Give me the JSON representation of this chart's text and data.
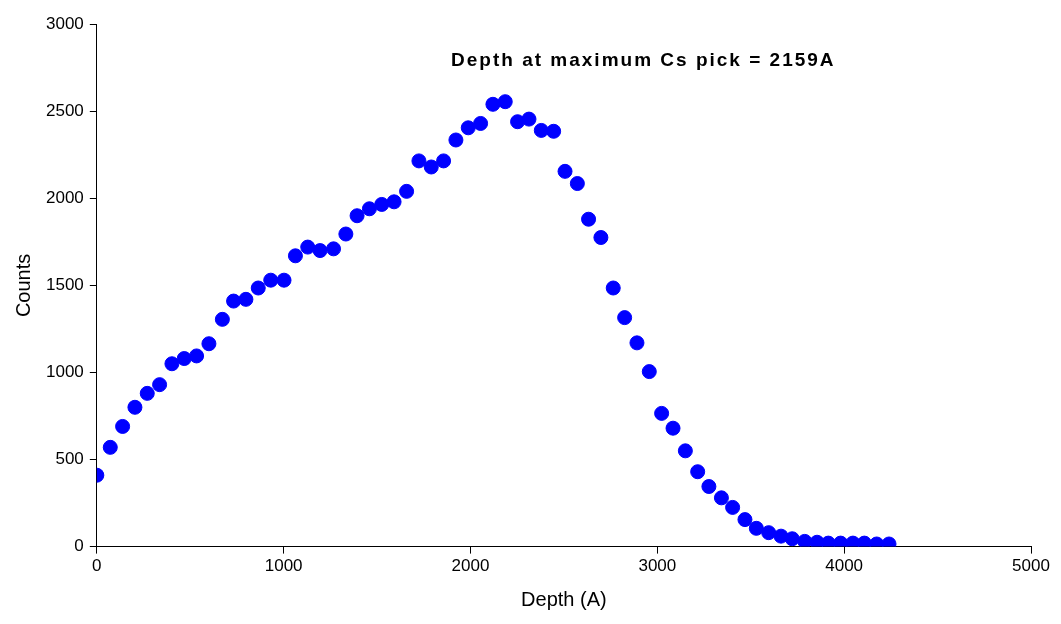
{
  "chart_data": {
    "type": "scatter",
    "xlabel": "Depth (A)",
    "ylabel": "Counts",
    "annotations": [
      "Depth at maximum Cs pick = 2159A"
    ],
    "marker": "circle",
    "grid": false,
    "legend": false,
    "xlim": [
      0,
      5000
    ],
    "xticks": [
      0,
      1000,
      2000,
      3000,
      4000,
      5000
    ],
    "ylim": [
      0,
      3000
    ],
    "yticks": [
      0,
      500,
      1000,
      1500,
      2000,
      2500,
      3000
    ],
    "series": [
      {
        "color": "#0000ff",
        "x": [
          0,
          72,
          138,
          204,
          270,
          336,
          402,
          468,
          534,
          600,
          672,
          732,
          798,
          864,
          931,
          1002,
          1063,
          1129,
          1195,
          1267,
          1333,
          1393,
          1459,
          1525,
          1591,
          1658,
          1724,
          1790,
          1856,
          1922,
          1988,
          2054,
          2120,
          2186,
          2252,
          2313,
          2379,
          2445,
          2506,
          2572,
          2632,
          2698,
          2764,
          2825,
          2891,
          2957,
          3023,
          3084,
          3150,
          3216,
          3276,
          3343,
          3403,
          3469,
          3530,
          3596,
          3662,
          3722,
          3789,
          3855,
          3915,
          3981,
          4047,
          4108,
          4174,
          4240
        ],
        "values": [
          410,
          570,
          690,
          800,
          880,
          930,
          1050,
          1080,
          1095,
          1165,
          1305,
          1410,
          1420,
          1485,
          1530,
          1530,
          1670,
          1720,
          1700,
          1710,
          1795,
          1900,
          1940,
          1965,
          1980,
          2040,
          2215,
          2180,
          2215,
          2335,
          2405,
          2430,
          2540,
          2555,
          2440,
          2455,
          2390,
          2385,
          2155,
          2085,
          1880,
          1775,
          1485,
          1315,
          1170,
          1005,
          765,
          680,
          550,
          430,
          345,
          280,
          225,
          155,
          105,
          80,
          60,
          45,
          30,
          25,
          20,
          20,
          20,
          20,
          15,
          15
        ]
      }
    ]
  }
}
